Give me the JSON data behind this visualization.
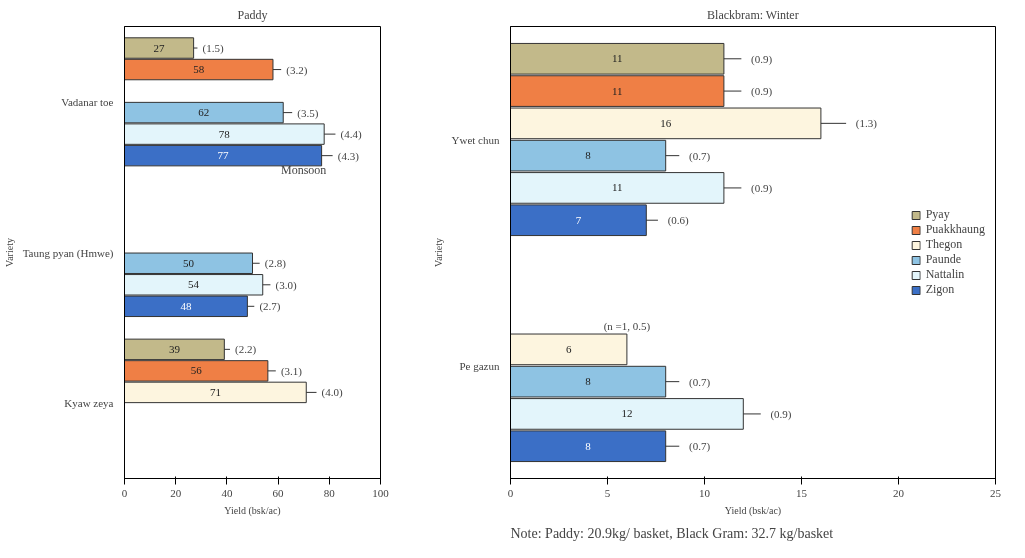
{
  "chart_data": [
    {
      "type": "bar",
      "orientation": "horizontal",
      "title": "Paddy",
      "subtitle": "Monsoon",
      "xlabel": "Yield (bsk/ac)",
      "ylabel": "Variety",
      "categories": [
        "Vadanar toe",
        "Taung pyan (Hmwe)",
        "Kyaw zeya"
      ],
      "series": [
        {
          "color": "#c2b98a",
          "values": [
            27,
            null,
            39
          ],
          "errors": [
            1.5,
            null,
            2.2
          ]
        },
        {
          "color": "#ef7f45",
          "values": [
            58,
            null,
            56
          ],
          "errors": [
            3.2,
            null,
            3.1
          ]
        },
        {
          "color": "#fdf5df",
          "values": [
            null,
            null,
            71
          ],
          "errors": [
            null,
            null,
            4.0
          ]
        },
        {
          "color": "#8ec3e3",
          "values": [
            62,
            50,
            null
          ],
          "errors": [
            3.5,
            2.8,
            null
          ]
        },
        {
          "color": "#e3f5fb",
          "values": [
            78,
            54,
            null
          ],
          "errors": [
            4.4,
            3.0,
            null
          ]
        },
        {
          "color": "#3b6fc6",
          "values": [
            77,
            48,
            null
          ],
          "errors": [
            4.3,
            2.7,
            null
          ]
        }
      ],
      "xlim": [
        0,
        100
      ],
      "xticks": [
        0,
        20,
        40,
        60,
        80,
        100
      ],
      "data_labels": true,
      "legend": false,
      "grid": false,
      "annotations": [
        "(1.5)",
        "(3.2)",
        "(3.5)",
        "(4.4)",
        "(4.3)",
        "(2.8)",
        "(3.0)",
        "(2.7)",
        "(2.2)",
        "(3.1)",
        "(4.0)"
      ]
    },
    {
      "type": "bar",
      "orientation": "horizontal",
      "title": "Blackbram: Winter",
      "xlabel": "Yield (bsk/ac)",
      "ylabel": "Variety",
      "categories": [
        "Ywet chun",
        "Pe gazun"
      ],
      "series": [
        {
          "name": "Pyay",
          "color": "#c2b98a",
          "values": [
            11,
            null
          ],
          "errors": [
            0.9,
            null
          ]
        },
        {
          "name": "Puakkhaung",
          "color": "#ef7f45",
          "values": [
            11,
            null
          ],
          "errors": [
            0.9,
            null
          ]
        },
        {
          "name": "Thegon",
          "color": "#fdf5df",
          "values": [
            16,
            6
          ],
          "errors": [
            1.3,
            null
          ]
        },
        {
          "name": "Paunde",
          "color": "#8ec3e3",
          "values": [
            8,
            8
          ],
          "errors": [
            0.7,
            0.7
          ]
        },
        {
          "name": "Nattalin",
          "color": "#e3f5fb",
          "values": [
            11,
            12
          ],
          "errors": [
            0.9,
            0.9
          ]
        },
        {
          "name": "Zigon",
          "color": "#3b6fc6",
          "values": [
            7,
            8
          ],
          "errors": [
            0.6,
            0.7
          ]
        }
      ],
      "xlim": [
        0,
        25
      ],
      "xticks": [
        0,
        5,
        10,
        15,
        20,
        25
      ],
      "data_labels": true,
      "legend": "right",
      "grid": false,
      "annotations": [
        "(0.9)",
        "(0.9)",
        "(1.3)",
        "(0.7)",
        "(0.9)",
        "(0.6)",
        "(n =1, 0.5)",
        "(0.7)",
        "(0.9)",
        "(0.7)",
        "Note: Paddy: 20.9kg/ basket,    Black Gram: 32.7 kg/basket"
      ]
    }
  ]
}
